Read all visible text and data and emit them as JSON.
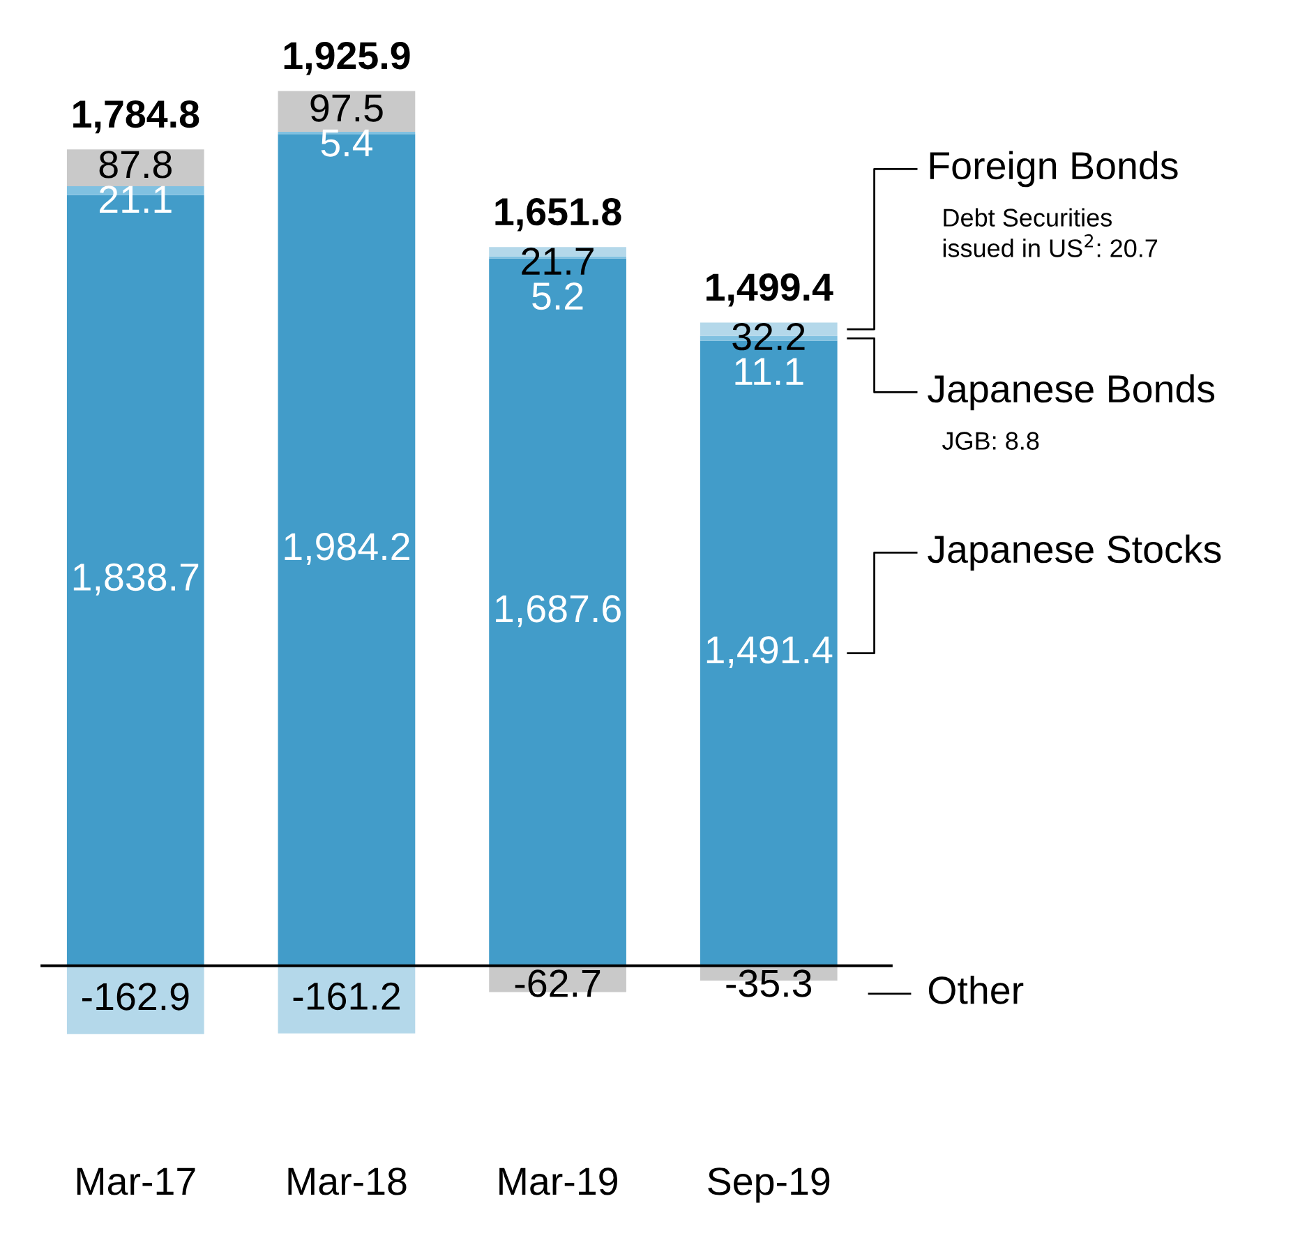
{
  "chart_data": {
    "type": "bar",
    "stacked": true,
    "categories": [
      "Mar-17",
      "Mar-18",
      "Mar-19",
      "Sep-19"
    ],
    "series": [
      {
        "name": "Japanese Stocks",
        "color": "#429cc9",
        "values": [
          1838.7,
          1984.2,
          1687.6,
          1491.4
        ],
        "value_labels": [
          "1,838.7",
          "1,984.2",
          "1,687.6",
          "1,491.4"
        ]
      },
      {
        "name": "Japanese Bonds",
        "color": "#80c1e1",
        "values": [
          21.1,
          5.4,
          5.2,
          11.1
        ],
        "value_labels": [
          "21.1",
          "5.4",
          "5.2",
          "11.1"
        ]
      },
      {
        "name": "Foreign Bonds",
        "color": "#b4d8ea",
        "values": [
          -162.9,
          -161.2,
          21.7,
          32.2
        ],
        "value_labels": [
          "-162.9",
          "-161.2",
          "21.7",
          "32.2"
        ]
      },
      {
        "name": "Other",
        "color": "#c9c9c9",
        "values": [
          87.8,
          97.5,
          -62.7,
          -35.3
        ],
        "value_labels": [
          "87.8",
          "97.5",
          "-62.7",
          "-35.3"
        ]
      }
    ],
    "totals": [
      "1,784.8",
      "1,925.9",
      "1,651.8",
      "1,499.4"
    ],
    "annotations": [
      "Debt Securities\nissued in US$^{2}$: 20.7",
      "JGB: 8.8"
    ]
  }
}
